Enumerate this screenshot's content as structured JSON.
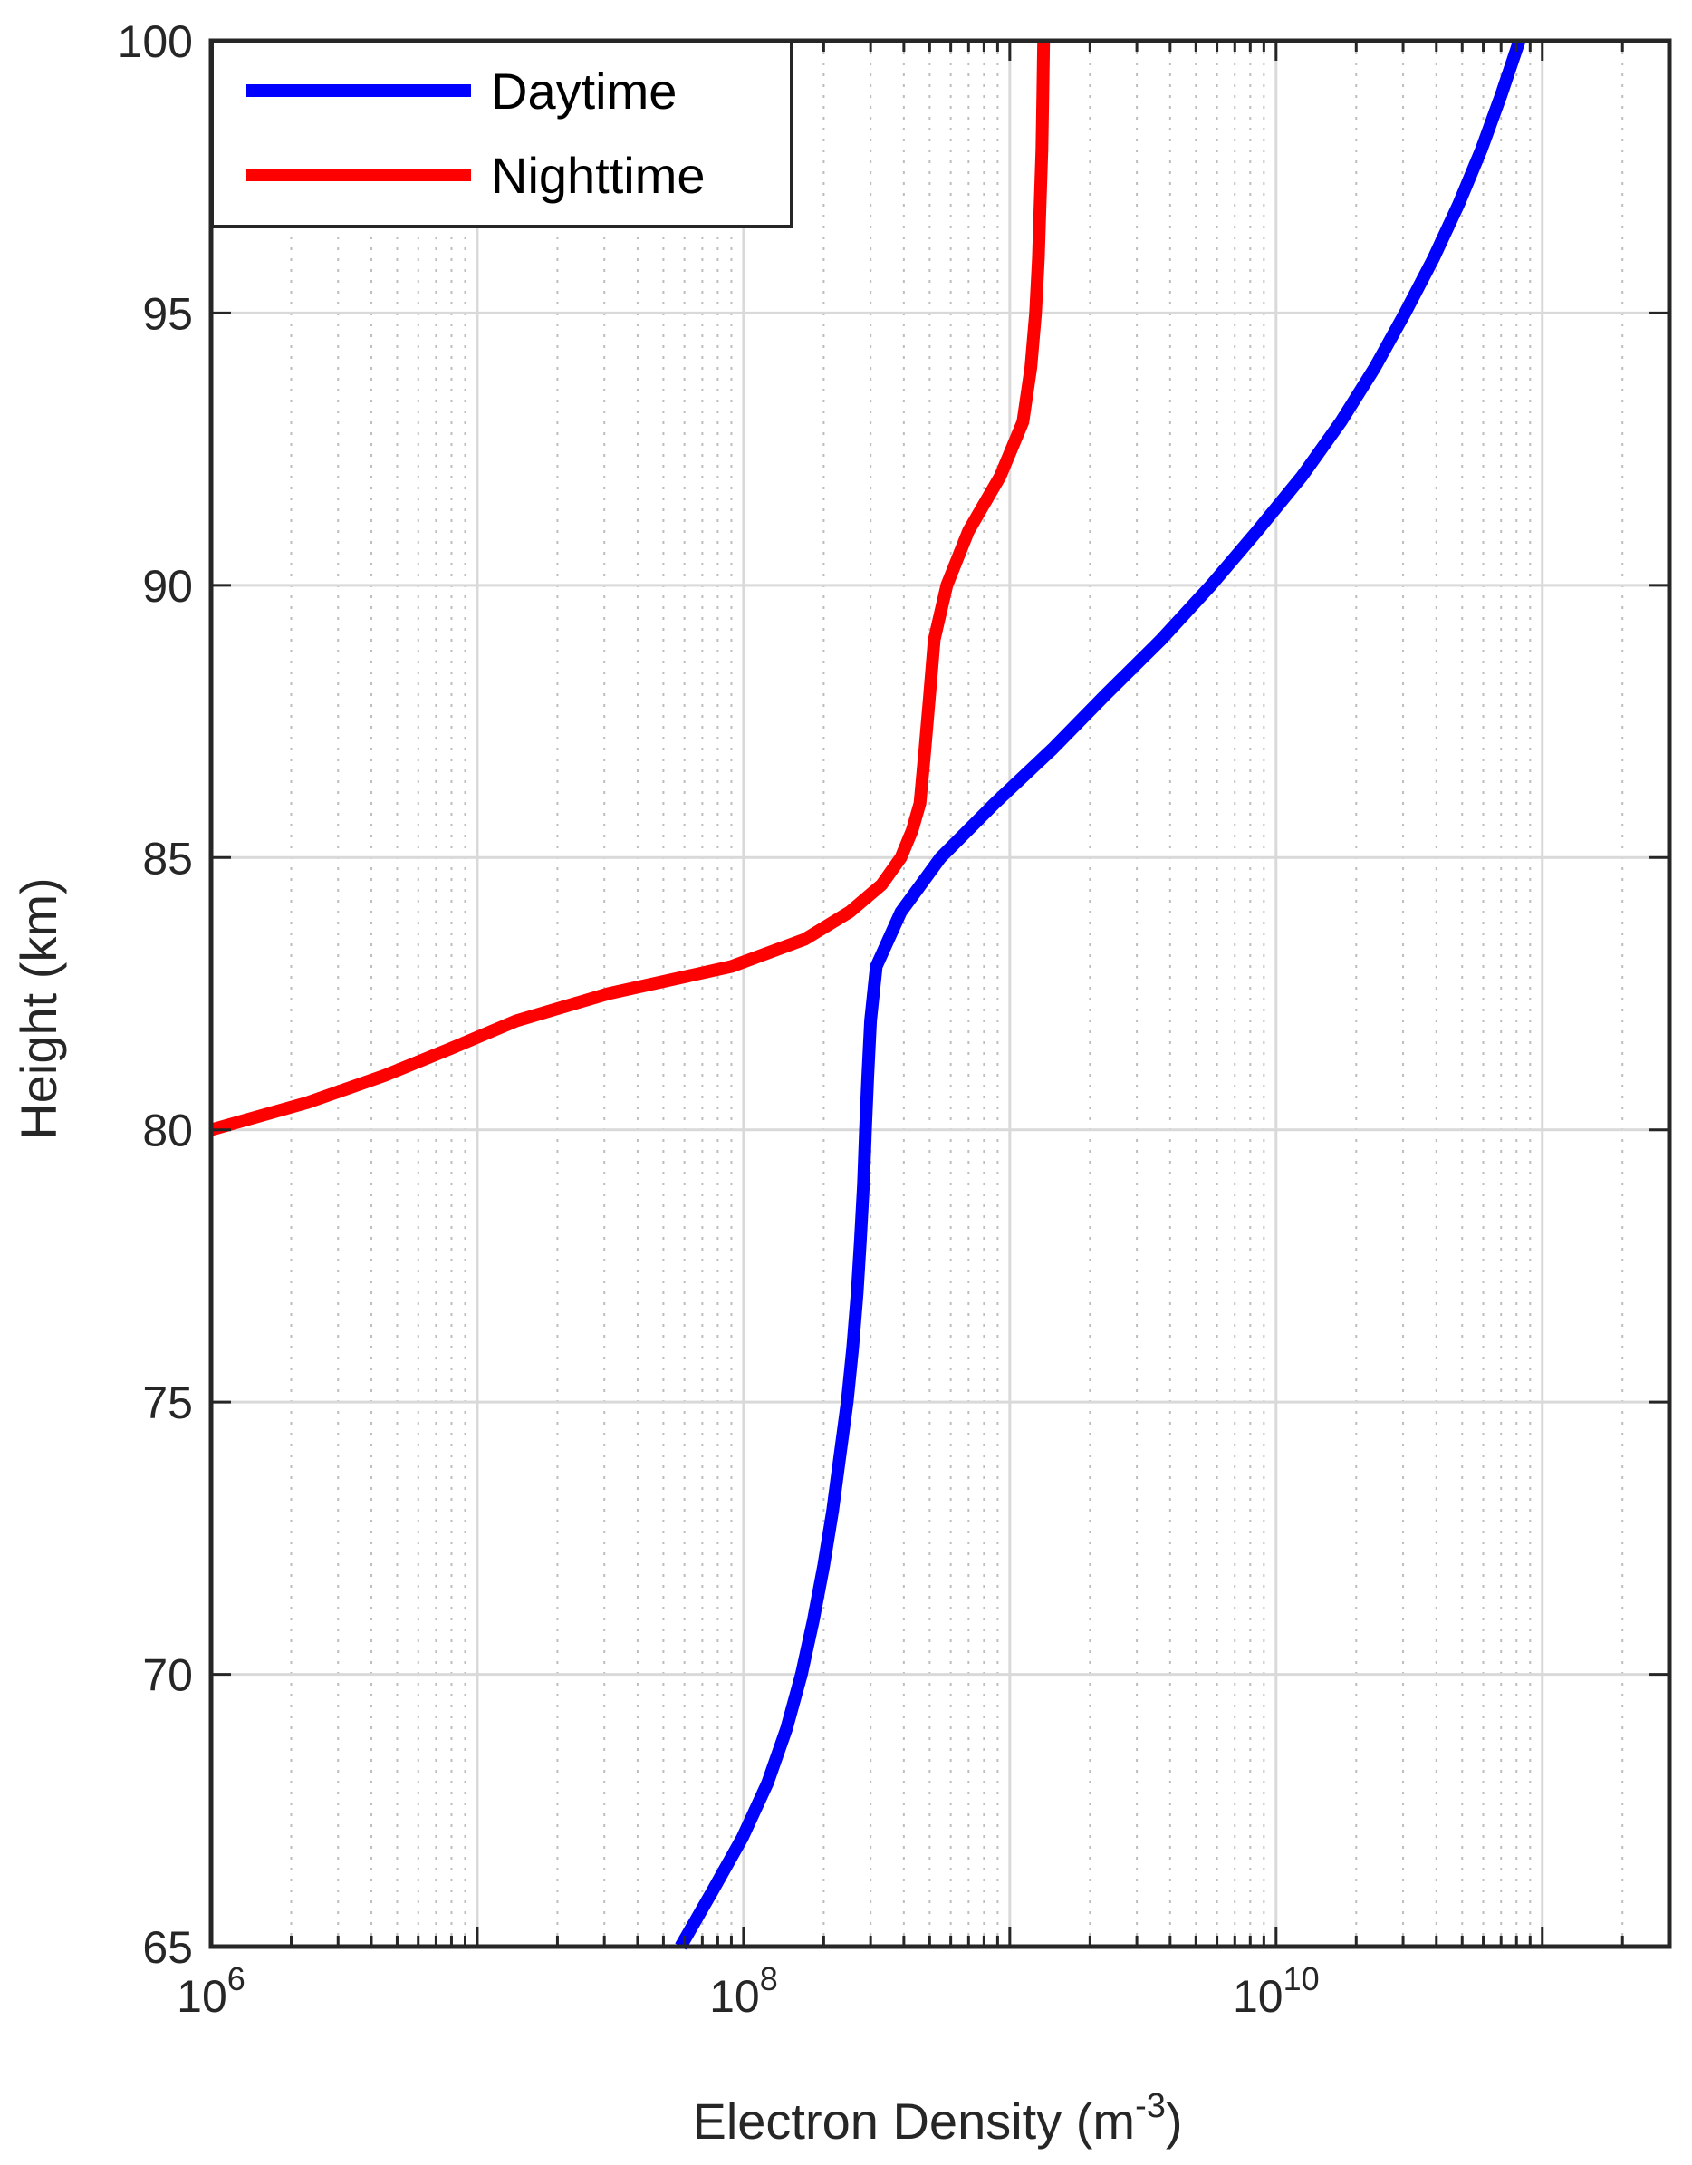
{
  "chart_data": {
    "type": "line",
    "xlabel": "Electron Density (m",
    "xlabel_exp": "-3",
    "xlabel_close": ")",
    "ylabel": "Height (km)",
    "xscale": "log",
    "xlim": [
      1000000.0,
      300000000000.0
    ],
    "ylim": [
      65,
      100
    ],
    "grid": true,
    "legend_position": "top-left",
    "x_ticks": [
      {
        "value": 1000000.0,
        "base": "10",
        "exp": "6"
      },
      {
        "value": 100000000.0,
        "base": "10",
        "exp": "8"
      },
      {
        "value": 10000000000.0,
        "base": "10",
        "exp": "10"
      }
    ],
    "y_ticks": [
      {
        "value": 65,
        "label": "65"
      },
      {
        "value": 70,
        "label": "70"
      },
      {
        "value": 75,
        "label": "75"
      },
      {
        "value": 80,
        "label": "80"
      },
      {
        "value": 85,
        "label": "85"
      },
      {
        "value": 90,
        "label": "90"
      },
      {
        "value": 95,
        "label": "95"
      },
      {
        "value": 100,
        "label": "100"
      }
    ],
    "series": [
      {
        "name": "Daytime",
        "color": "#0000ff",
        "points": [
          [
            58000000.0,
            65
          ],
          [
            76000000.0,
            66
          ],
          [
            99000000.0,
            67
          ],
          [
            123000000.0,
            68
          ],
          [
            145000000.0,
            69
          ],
          [
            165000000.0,
            70
          ],
          [
            183000000.0,
            71
          ],
          [
            200000000.0,
            72
          ],
          [
            216000000.0,
            73
          ],
          [
            230000000.0,
            74
          ],
          [
            245000000.0,
            75
          ],
          [
            257000000.0,
            76
          ],
          [
            267000000.0,
            77
          ],
          [
            275000000.0,
            78
          ],
          [
            282000000.0,
            79
          ],
          [
            287000000.0,
            80
          ],
          [
            293000000.0,
            81
          ],
          [
            300000000.0,
            82
          ],
          [
            315000000.0,
            83
          ],
          [
            390000000.0,
            84
          ],
          [
            550000000.0,
            85
          ],
          [
            880000000.0,
            86
          ],
          [
            1450000000.0,
            87
          ],
          [
            2300000000.0,
            88
          ],
          [
            3700000000.0,
            89
          ],
          [
            5700000000.0,
            90
          ],
          [
            8500000000.0,
            91
          ],
          [
            12500000000.0,
            92
          ],
          [
            17500000000.0,
            93
          ],
          [
            23500000000.0,
            94
          ],
          [
            30500000000.0,
            95
          ],
          [
            39000000000.0,
            96
          ],
          [
            48500000000.0,
            97
          ],
          [
            59000000000.0,
            98
          ],
          [
            70000000000.0,
            99
          ],
          [
            82000000000.0,
            100
          ]
        ]
      },
      {
        "name": "Nighttime",
        "color": "#ff0000",
        "points": [
          [
            1000000.0,
            80
          ],
          [
            2300000.0,
            80.5
          ],
          [
            4500000.0,
            81
          ],
          [
            8000000.0,
            81.5
          ],
          [
            14000000.0,
            82
          ],
          [
            31000000.0,
            82.5
          ],
          [
            90000000.0,
            83
          ],
          [
            170000000.0,
            83.5
          ],
          [
            250000000.0,
            84
          ],
          [
            330000000.0,
            84.5
          ],
          [
            390000000.0,
            85
          ],
          [
            430000000.0,
            85.5
          ],
          [
            460000000.0,
            86
          ],
          [
            480000000.0,
            87
          ],
          [
            500000000.0,
            88
          ],
          [
            520000000.0,
            89
          ],
          [
            580000000.0,
            90
          ],
          [
            700000000.0,
            91
          ],
          [
            920000000.0,
            92
          ],
          [
            1120000000.0,
            93
          ],
          [
            1200000000.0,
            94
          ],
          [
            1250000000.0,
            95
          ],
          [
            1280000000.0,
            96
          ],
          [
            1300000000.0,
            97
          ],
          [
            1320000000.0,
            98
          ],
          [
            1330000000.0,
            99
          ],
          [
            1340000000.0,
            100
          ]
        ]
      }
    ]
  }
}
